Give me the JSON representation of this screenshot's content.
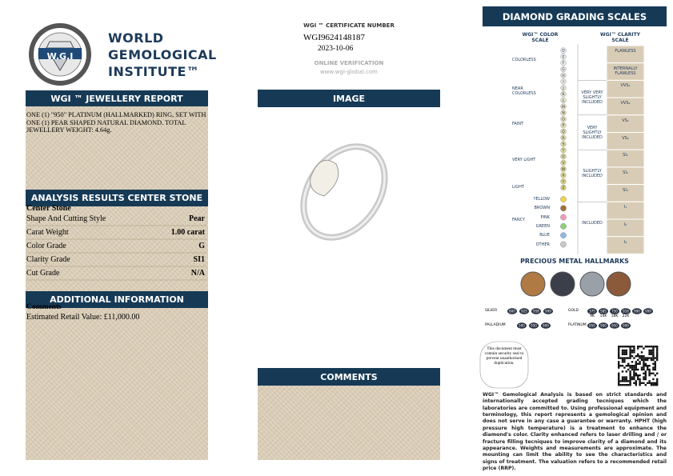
{
  "header": {
    "logo_text": "W.G.I",
    "org_lines": [
      "WORLD",
      "GEMOLOGICAL",
      "INSTITUTE™"
    ]
  },
  "certificate": {
    "label": "WGI ™ CERTIFICATE NUMBER",
    "number": "WGI9624148187",
    "date": "2023-10-06",
    "verification_label": "ONLINE VERIFICATION",
    "verification_url": "www.wgi-global.com"
  },
  "report": {
    "title": "WGI ™ JEWELLERY REPORT",
    "description": "ONE (1) \"950\" PLATINUM (HALLMARKED) RING, SET WITH ONE (1) PEAR SHAPED NATURAL DIAMOND. TOTAL JEWELLERY WEIGHT: 4.64g."
  },
  "analysis": {
    "title": "ANALYSIS RESULTS CENTER STONE",
    "subtitle": "Center Stone",
    "rows": [
      [
        "Shape And Cutting Style",
        "Pear"
      ],
      [
        "Carat Weight",
        "1.00 carat"
      ],
      [
        "Color Grade",
        "G"
      ],
      [
        "Clarity Grade",
        "SI1"
      ],
      [
        "Cut Grade",
        "N/A"
      ]
    ]
  },
  "additional": {
    "title": "ADDITIONAL INFORMATION",
    "subtitle": "Comments",
    "text": "Estimated Retail Value: £11,000.00"
  },
  "image_panel": {
    "title": "IMAGE"
  },
  "comments_panel": {
    "title": "COMMENTS"
  },
  "scales": {
    "title": "DIAMOND GRADING SCALES",
    "color_scale_title": "WGI™ COLOR SCALE",
    "clarity_scale_title": "WGI™ CLARITY SCALE",
    "color_letters": [
      "D",
      "E",
      "F",
      "G",
      "H",
      "I",
      "J",
      "K",
      "L",
      "M",
      "N",
      "O",
      "P",
      "Q",
      "R",
      "S",
      "T",
      "U",
      "V",
      "W",
      "X",
      "Y",
      "Z"
    ],
    "color_groups": [
      "COLORLESS",
      "NEAR COLORLESS",
      "FAINT",
      "VERY LIGHT",
      "LIGHT"
    ],
    "fancy_label": "FANCY",
    "fancy_colors": [
      "YELLOW",
      "BROWN",
      "PINK",
      "GREEN",
      "BLUE",
      "OTHER"
    ],
    "clarity_grades": [
      "FLAWLESS",
      "INTERNALLY FLAWLESS",
      "VVS₁",
      "VVS₂",
      "VS₁",
      "VS₂",
      "SI₁",
      "SI₂",
      "SI₃",
      "I₁",
      "I₂",
      "I₃"
    ],
    "clarity_groups": [
      "VERY VERY SLIGHTLY INCLUDED",
      "VERY SLIGHTLY INCLUDED",
      "SLIGHTLY INCLUDED",
      "INCLUDED"
    ]
  },
  "hallmarks": {
    "title": "PRECIOUS METAL HALLMARKS",
    "silver_label": "SILVER",
    "silver": [
      "800",
      "925",
      "958",
      "999"
    ],
    "palladium_label": "PALLADIUM",
    "palladium": [
      "500",
      "950",
      "999"
    ],
    "gold_label": "GOLD",
    "gold": [
      "375",
      "585",
      "750",
      "916",
      "990",
      "999"
    ],
    "gold_karats": [
      "9K",
      "14K",
      "18K",
      "22K"
    ],
    "platinum_label": "PLATINUM",
    "platinum": [
      "850",
      "900",
      "950",
      "999"
    ]
  },
  "seal_note": "This document must contain security seal to prevent unauthorised duplication.",
  "disclaimer": "WGI™ Gemological Analysis is based on strict standards and internationally accepted grading tecniques which the laboratories are committed to. Using professional equipment and terminology, this report represents a gemological opinion and does not serve in any case a guarantee or warranty. HPHT (high pressure high temperature) is a treatment to enhance the diamond's color. Clarity enhanced refers to laser drilling and / or fracture filling tecniques to improve clarity of a diamond and its appearance. Weights and measurements are approximate. The mounting can limit the ability to see the characteristics and signs of treatment. The valuation refers to a recommended retail price (RRP)."
}
